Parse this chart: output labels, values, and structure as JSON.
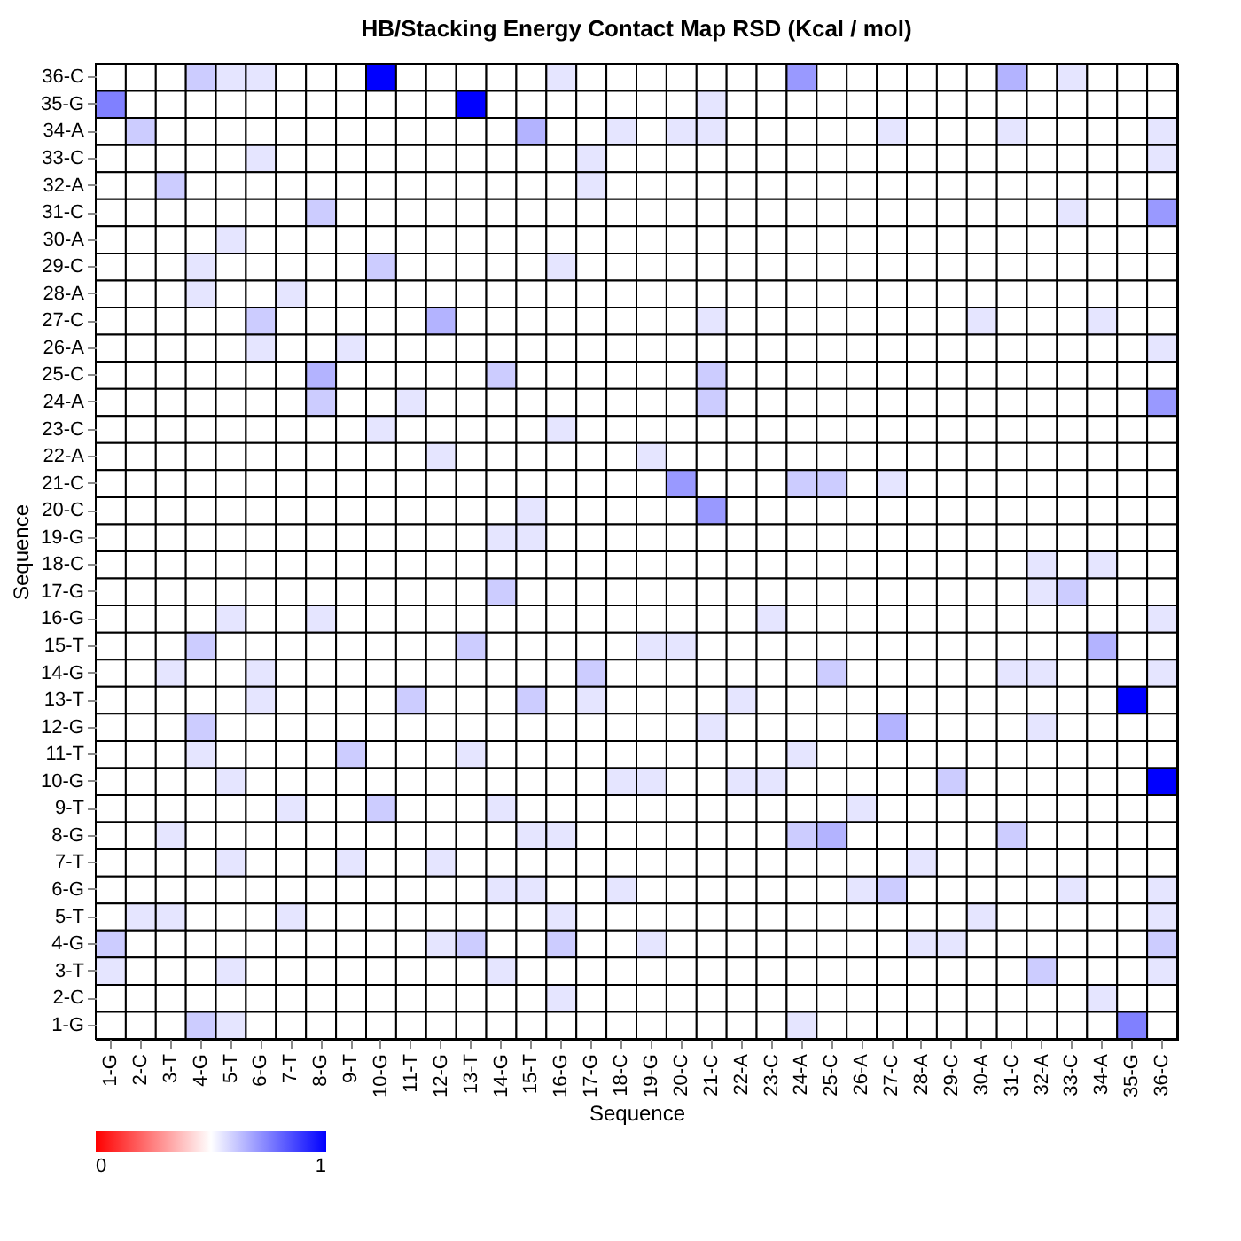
{
  "chart_data": {
    "type": "heatmap",
    "title": "HB/Stacking Energy Contact Map RSD (Kcal / mol)",
    "xlabel": "Sequence",
    "ylabel": "Sequence",
    "categories": [
      "1-G",
      "2-C",
      "3-T",
      "4-G",
      "5-T",
      "6-G",
      "7-T",
      "8-G",
      "9-T",
      "10-G",
      "11-T",
      "12-G",
      "13-T",
      "14-G",
      "15-T",
      "16-G",
      "17-G",
      "18-C",
      "19-G",
      "20-C",
      "21-C",
      "22-A",
      "23-C",
      "24-A",
      "25-C",
      "26-A",
      "27-C",
      "28-A",
      "29-C",
      "30-A",
      "31-C",
      "32-A",
      "33-C",
      "34-A",
      "35-G",
      "36-C"
    ],
    "y_categories": [
      "36-C",
      "35-G",
      "34-A",
      "33-C",
      "32-A",
      "31-C",
      "30-A",
      "29-C",
      "28-A",
      "27-C",
      "26-A",
      "25-C",
      "24-A",
      "23-C",
      "22-A",
      "21-C",
      "20-C",
      "19-G",
      "18-C",
      "17-G",
      "16-G",
      "15-T",
      "14-G",
      "13-T",
      "12-G",
      "11-T",
      "10-G",
      "9-T",
      "8-G",
      "7-T",
      "6-G",
      "5-T",
      "4-G",
      "3-T",
      "2-C",
      "1-G"
    ],
    "cells": [
      [
        0.5,
        0.5,
        0.5,
        0.6,
        0.55,
        0.55,
        0.5,
        0.5,
        0.5,
        1,
        0.5,
        0.5,
        0.5,
        0.5,
        0.5,
        0.55,
        0.5,
        0.5,
        0.5,
        0.5,
        0.5,
        0.5,
        0.5,
        0.7,
        0.5,
        0.5,
        0.5,
        0.5,
        0.5,
        0.5,
        0.65,
        0.5,
        0.55,
        0.5,
        0.5,
        0.5
      ],
      [
        0.75,
        0.5,
        0.5,
        0.5,
        0.5,
        0.5,
        0.5,
        0.5,
        0.5,
        0.5,
        0.5,
        0.5,
        1,
        0.5,
        0.5,
        0.5,
        0.5,
        0.5,
        0.5,
        0.5,
        0.55,
        0.5,
        0.5,
        0.5,
        0.5,
        0.5,
        0.5,
        0.5,
        0.5,
        0.5,
        0.5,
        0.5,
        0.5,
        0.5,
        0.5,
        0.5
      ],
      [
        0.5,
        0.6,
        0.5,
        0.5,
        0.5,
        0.5,
        0.5,
        0.5,
        0.5,
        0.5,
        0.5,
        0.5,
        0.5,
        0.5,
        0.65,
        0.5,
        0.5,
        0.55,
        0.5,
        0.55,
        0.55,
        0.5,
        0.5,
        0.5,
        0.5,
        0.5,
        0.55,
        0.5,
        0.5,
        0.5,
        0.55,
        0.5,
        0.5,
        0.5,
        0.5,
        0.55
      ],
      [
        0.5,
        0.5,
        0.5,
        0.5,
        0.5,
        0.55,
        0.5,
        0.5,
        0.5,
        0.5,
        0.5,
        0.5,
        0.5,
        0.5,
        0.5,
        0.5,
        0.55,
        0.5,
        0.5,
        0.5,
        0.5,
        0.5,
        0.5,
        0.5,
        0.5,
        0.5,
        0.5,
        0.5,
        0.5,
        0.5,
        0.5,
        0.5,
        0.5,
        0.5,
        0.5,
        0.55
      ],
      [
        0.5,
        0.5,
        0.6,
        0.5,
        0.5,
        0.5,
        0.5,
        0.5,
        0.5,
        0.5,
        0.5,
        0.5,
        0.5,
        0.5,
        0.5,
        0.5,
        0.55,
        0.5,
        0.5,
        0.5,
        0.5,
        0.5,
        0.5,
        0.5,
        0.5,
        0.5,
        0.5,
        0.5,
        0.5,
        0.5,
        0.5,
        0.5,
        0.5,
        0.5,
        0.5,
        0.5
      ],
      [
        0.5,
        0.5,
        0.5,
        0.5,
        0.5,
        0.5,
        0.5,
        0.6,
        0.5,
        0.5,
        0.5,
        0.5,
        0.5,
        0.5,
        0.5,
        0.5,
        0.5,
        0.5,
        0.5,
        0.5,
        0.5,
        0.5,
        0.5,
        0.5,
        0.5,
        0.5,
        0.5,
        0.5,
        0.5,
        0.5,
        0.5,
        0.5,
        0.55,
        0.5,
        0.5,
        0.7
      ],
      [
        0.5,
        0.5,
        0.5,
        0.5,
        0.55,
        0.5,
        0.5,
        0.5,
        0.5,
        0.5,
        0.5,
        0.5,
        0.5,
        0.5,
        0.5,
        0.5,
        0.5,
        0.5,
        0.5,
        0.5,
        0.5,
        0.5,
        0.5,
        0.5,
        0.5,
        0.5,
        0.5,
        0.5,
        0.5,
        0.5,
        0.5,
        0.5,
        0.5,
        0.5,
        0.5,
        0.5
      ],
      [
        0.5,
        0.5,
        0.5,
        0.55,
        0.5,
        0.5,
        0.5,
        0.5,
        0.5,
        0.6,
        0.5,
        0.5,
        0.5,
        0.5,
        0.5,
        0.55,
        0.5,
        0.5,
        0.5,
        0.5,
        0.5,
        0.5,
        0.5,
        0.5,
        0.5,
        0.5,
        0.5,
        0.5,
        0.5,
        0.5,
        0.5,
        0.5,
        0.5,
        0.5,
        0.5,
        0.5
      ],
      [
        0.5,
        0.5,
        0.5,
        0.55,
        0.5,
        0.5,
        0.55,
        0.5,
        0.5,
        0.5,
        0.5,
        0.5,
        0.5,
        0.5,
        0.5,
        0.5,
        0.5,
        0.5,
        0.5,
        0.5,
        0.5,
        0.5,
        0.5,
        0.5,
        0.5,
        0.5,
        0.5,
        0.5,
        0.5,
        0.5,
        0.5,
        0.5,
        0.5,
        0.5,
        0.5,
        0.5
      ],
      [
        0.5,
        0.5,
        0.5,
        0.5,
        0.5,
        0.6,
        0.5,
        0.5,
        0.5,
        0.5,
        0.5,
        0.65,
        0.5,
        0.5,
        0.5,
        0.5,
        0.5,
        0.5,
        0.5,
        0.5,
        0.55,
        0.5,
        0.5,
        0.5,
        0.5,
        0.5,
        0.5,
        0.5,
        0.5,
        0.55,
        0.5,
        0.5,
        0.5,
        0.55,
        0.5,
        0.5
      ],
      [
        0.5,
        0.5,
        0.5,
        0.5,
        0.5,
        0.55,
        0.5,
        0.5,
        0.55,
        0.5,
        0.5,
        0.5,
        0.5,
        0.5,
        0.5,
        0.5,
        0.5,
        0.5,
        0.5,
        0.5,
        0.5,
        0.5,
        0.5,
        0.5,
        0.5,
        0.5,
        0.5,
        0.5,
        0.5,
        0.5,
        0.5,
        0.5,
        0.5,
        0.5,
        0.5,
        0.55
      ],
      [
        0.5,
        0.5,
        0.5,
        0.5,
        0.5,
        0.5,
        0.5,
        0.65,
        0.5,
        0.5,
        0.5,
        0.5,
        0.5,
        0.6,
        0.5,
        0.5,
        0.5,
        0.5,
        0.5,
        0.5,
        0.6,
        0.5,
        0.5,
        0.5,
        0.5,
        0.5,
        0.5,
        0.5,
        0.5,
        0.5,
        0.5,
        0.5,
        0.5,
        0.5,
        0.5,
        0.5
      ],
      [
        0.5,
        0.5,
        0.5,
        0.5,
        0.5,
        0.5,
        0.5,
        0.6,
        0.5,
        0.5,
        0.55,
        0.5,
        0.5,
        0.5,
        0.5,
        0.5,
        0.5,
        0.5,
        0.5,
        0.5,
        0.6,
        0.5,
        0.5,
        0.5,
        0.5,
        0.5,
        0.5,
        0.5,
        0.5,
        0.5,
        0.5,
        0.5,
        0.5,
        0.5,
        0.5,
        0.7
      ],
      [
        0.5,
        0.5,
        0.5,
        0.5,
        0.5,
        0.5,
        0.5,
        0.5,
        0.5,
        0.55,
        0.5,
        0.5,
        0.5,
        0.5,
        0.5,
        0.55,
        0.5,
        0.5,
        0.5,
        0.5,
        0.5,
        0.5,
        0.5,
        0.5,
        0.5,
        0.5,
        0.5,
        0.5,
        0.5,
        0.5,
        0.5,
        0.5,
        0.5,
        0.5,
        0.5,
        0.5
      ],
      [
        0.5,
        0.5,
        0.5,
        0.5,
        0.5,
        0.5,
        0.5,
        0.5,
        0.5,
        0.5,
        0.5,
        0.55,
        0.5,
        0.5,
        0.5,
        0.5,
        0.5,
        0.5,
        0.55,
        0.5,
        0.5,
        0.5,
        0.5,
        0.5,
        0.5,
        0.5,
        0.5,
        0.5,
        0.5,
        0.5,
        0.5,
        0.5,
        0.5,
        0.5,
        0.5,
        0.5
      ],
      [
        0.5,
        0.5,
        0.5,
        0.5,
        0.5,
        0.5,
        0.5,
        0.5,
        0.5,
        0.5,
        0.5,
        0.5,
        0.5,
        0.5,
        0.5,
        0.5,
        0.5,
        0.5,
        0.5,
        0.7,
        0.5,
        0.5,
        0.5,
        0.6,
        0.6,
        0.5,
        0.55,
        0.5,
        0.5,
        0.5,
        0.5,
        0.5,
        0.5,
        0.5,
        0.5,
        0.5
      ],
      [
        0.5,
        0.5,
        0.5,
        0.5,
        0.5,
        0.5,
        0.5,
        0.5,
        0.5,
        0.5,
        0.5,
        0.5,
        0.5,
        0.5,
        0.55,
        0.5,
        0.5,
        0.5,
        0.5,
        0.5,
        0.7,
        0.5,
        0.5,
        0.5,
        0.5,
        0.5,
        0.5,
        0.5,
        0.5,
        0.5,
        0.5,
        0.5,
        0.5,
        0.5,
        0.5,
        0.5
      ],
      [
        0.5,
        0.5,
        0.5,
        0.5,
        0.5,
        0.5,
        0.5,
        0.5,
        0.5,
        0.5,
        0.5,
        0.5,
        0.5,
        0.55,
        0.55,
        0.5,
        0.5,
        0.5,
        0.5,
        0.5,
        0.5,
        0.5,
        0.5,
        0.5,
        0.5,
        0.5,
        0.5,
        0.5,
        0.5,
        0.5,
        0.5,
        0.5,
        0.5,
        0.5,
        0.5,
        0.5
      ],
      [
        0.5,
        0.5,
        0.5,
        0.5,
        0.5,
        0.5,
        0.5,
        0.5,
        0.5,
        0.5,
        0.5,
        0.5,
        0.5,
        0.5,
        0.5,
        0.5,
        0.5,
        0.5,
        0.5,
        0.5,
        0.5,
        0.5,
        0.5,
        0.5,
        0.5,
        0.5,
        0.5,
        0.5,
        0.5,
        0.5,
        0.5,
        0.55,
        0.5,
        0.55,
        0.5,
        0.5
      ],
      [
        0.5,
        0.5,
        0.5,
        0.5,
        0.5,
        0.5,
        0.5,
        0.5,
        0.5,
        0.5,
        0.5,
        0.5,
        0.5,
        0.6,
        0.5,
        0.5,
        0.5,
        0.5,
        0.5,
        0.5,
        0.5,
        0.5,
        0.5,
        0.5,
        0.5,
        0.5,
        0.5,
        0.5,
        0.5,
        0.5,
        0.5,
        0.55,
        0.6,
        0.5,
        0.5,
        0.5
      ],
      [
        0.5,
        0.5,
        0.5,
        0.5,
        0.55,
        0.5,
        0.5,
        0.55,
        0.5,
        0.5,
        0.5,
        0.5,
        0.5,
        0.5,
        0.5,
        0.5,
        0.5,
        0.5,
        0.5,
        0.5,
        0.5,
        0.5,
        0.55,
        0.5,
        0.5,
        0.5,
        0.5,
        0.5,
        0.5,
        0.5,
        0.5,
        0.5,
        0.5,
        0.5,
        0.5,
        0.55
      ],
      [
        0.5,
        0.5,
        0.5,
        0.6,
        0.5,
        0.5,
        0.5,
        0.5,
        0.5,
        0.5,
        0.5,
        0.5,
        0.6,
        0.5,
        0.5,
        0.5,
        0.5,
        0.5,
        0.55,
        0.55,
        0.5,
        0.5,
        0.5,
        0.5,
        0.5,
        0.5,
        0.5,
        0.5,
        0.5,
        0.5,
        0.5,
        0.5,
        0.5,
        0.65,
        0.5,
        0.5
      ],
      [
        0.5,
        0.5,
        0.55,
        0.5,
        0.5,
        0.55,
        0.5,
        0.5,
        0.5,
        0.5,
        0.5,
        0.5,
        0.5,
        0.5,
        0.5,
        0.5,
        0.6,
        0.5,
        0.5,
        0.5,
        0.5,
        0.5,
        0.5,
        0.5,
        0.6,
        0.5,
        0.5,
        0.5,
        0.5,
        0.5,
        0.55,
        0.55,
        0.5,
        0.5,
        0.5,
        0.55
      ],
      [
        0.5,
        0.5,
        0.5,
        0.5,
        0.5,
        0.55,
        0.5,
        0.5,
        0.5,
        0.5,
        0.6,
        0.5,
        0.5,
        0.5,
        0.6,
        0.5,
        0.55,
        0.5,
        0.5,
        0.5,
        0.5,
        0.55,
        0.5,
        0.5,
        0.5,
        0.5,
        0.5,
        0.5,
        0.5,
        0.5,
        0.5,
        0.5,
        0.5,
        0.5,
        1,
        0.5
      ],
      [
        0.5,
        0.5,
        0.5,
        0.6,
        0.5,
        0.5,
        0.5,
        0.5,
        0.5,
        0.5,
        0.5,
        0.5,
        0.5,
        0.5,
        0.5,
        0.5,
        0.5,
        0.5,
        0.5,
        0.5,
        0.55,
        0.5,
        0.5,
        0.5,
        0.5,
        0.5,
        0.65,
        0.5,
        0.5,
        0.5,
        0.5,
        0.55,
        0.5,
        0.5,
        0.5,
        0.5
      ],
      [
        0.5,
        0.5,
        0.5,
        0.55,
        0.5,
        0.5,
        0.5,
        0.5,
        0.6,
        0.5,
        0.5,
        0.5,
        0.55,
        0.5,
        0.5,
        0.5,
        0.5,
        0.5,
        0.5,
        0.5,
        0.5,
        0.5,
        0.5,
        0.55,
        0.5,
        0.5,
        0.5,
        0.5,
        0.5,
        0.5,
        0.5,
        0.5,
        0.5,
        0.5,
        0.5,
        0.5
      ],
      [
        0.5,
        0.5,
        0.5,
        0.5,
        0.55,
        0.5,
        0.5,
        0.5,
        0.5,
        0.5,
        0.5,
        0.5,
        0.5,
        0.5,
        0.5,
        0.5,
        0.5,
        0.55,
        0.55,
        0.5,
        0.5,
        0.55,
        0.55,
        0.5,
        0.5,
        0.5,
        0.5,
        0.5,
        0.6,
        0.5,
        0.5,
        0.5,
        0.5,
        0.5,
        0.5,
        1
      ],
      [
        0.5,
        0.5,
        0.5,
        0.5,
        0.5,
        0.5,
        0.55,
        0.5,
        0.5,
        0.6,
        0.5,
        0.5,
        0.5,
        0.55,
        0.5,
        0.5,
        0.5,
        0.5,
        0.5,
        0.5,
        0.5,
        0.5,
        0.5,
        0.5,
        0.5,
        0.55,
        0.5,
        0.5,
        0.5,
        0.5,
        0.5,
        0.5,
        0.5,
        0.5,
        0.5,
        0.5
      ],
      [
        0.5,
        0.5,
        0.55,
        0.5,
        0.5,
        0.5,
        0.5,
        0.5,
        0.5,
        0.5,
        0.5,
        0.5,
        0.5,
        0.5,
        0.55,
        0.55,
        0.5,
        0.5,
        0.5,
        0.5,
        0.5,
        0.5,
        0.5,
        0.6,
        0.65,
        0.5,
        0.5,
        0.5,
        0.5,
        0.5,
        0.6,
        0.5,
        0.5,
        0.5,
        0.5,
        0.5
      ],
      [
        0.5,
        0.5,
        0.5,
        0.5,
        0.55,
        0.5,
        0.5,
        0.5,
        0.55,
        0.5,
        0.5,
        0.55,
        0.5,
        0.5,
        0.5,
        0.5,
        0.5,
        0.5,
        0.5,
        0.5,
        0.5,
        0.5,
        0.5,
        0.5,
        0.5,
        0.5,
        0.5,
        0.55,
        0.5,
        0.5,
        0.5,
        0.5,
        0.5,
        0.5,
        0.5,
        0.5
      ],
      [
        0.5,
        0.5,
        0.5,
        0.5,
        0.5,
        0.5,
        0.5,
        0.5,
        0.5,
        0.5,
        0.5,
        0.5,
        0.5,
        0.55,
        0.55,
        0.5,
        0.5,
        0.55,
        0.5,
        0.5,
        0.5,
        0.5,
        0.5,
        0.5,
        0.5,
        0.55,
        0.6,
        0.5,
        0.5,
        0.5,
        0.5,
        0.5,
        0.55,
        0.5,
        0.5,
        0.55
      ],
      [
        0.5,
        0.55,
        0.55,
        0.5,
        0.5,
        0.5,
        0.55,
        0.5,
        0.5,
        0.5,
        0.5,
        0.5,
        0.5,
        0.5,
        0.5,
        0.55,
        0.5,
        0.5,
        0.5,
        0.5,
        0.5,
        0.5,
        0.5,
        0.5,
        0.5,
        0.5,
        0.5,
        0.5,
        0.5,
        0.55,
        0.5,
        0.5,
        0.5,
        0.5,
        0.5,
        0.55
      ],
      [
        0.6,
        0.5,
        0.5,
        0.5,
        0.5,
        0.5,
        0.5,
        0.5,
        0.5,
        0.5,
        0.5,
        0.55,
        0.6,
        0.5,
        0.5,
        0.6,
        0.5,
        0.5,
        0.55,
        0.5,
        0.5,
        0.5,
        0.5,
        0.5,
        0.5,
        0.5,
        0.5,
        0.55,
        0.55,
        0.5,
        0.5,
        0.5,
        0.5,
        0.5,
        0.5,
        0.6
      ],
      [
        0.55,
        0.5,
        0.5,
        0.5,
        0.55,
        0.5,
        0.5,
        0.5,
        0.5,
        0.5,
        0.5,
        0.5,
        0.5,
        0.55,
        0.5,
        0.5,
        0.5,
        0.5,
        0.5,
        0.5,
        0.5,
        0.5,
        0.5,
        0.5,
        0.5,
        0.5,
        0.5,
        0.5,
        0.5,
        0.5,
        0.5,
        0.6,
        0.5,
        0.5,
        0.5,
        0.55
      ],
      [
        0.5,
        0.5,
        0.5,
        0.5,
        0.5,
        0.5,
        0.5,
        0.5,
        0.5,
        0.5,
        0.5,
        0.5,
        0.5,
        0.5,
        0.5,
        0.55,
        0.5,
        0.5,
        0.5,
        0.5,
        0.5,
        0.5,
        0.5,
        0.5,
        0.5,
        0.5,
        0.5,
        0.5,
        0.5,
        0.5,
        0.5,
        0.5,
        0.5,
        0.55,
        0.5,
        0.5
      ],
      [
        0.5,
        0.5,
        0.5,
        0.6,
        0.55,
        0.5,
        0.5,
        0.5,
        0.5,
        0.5,
        0.5,
        0.5,
        0.5,
        0.5,
        0.5,
        0.5,
        0.5,
        0.5,
        0.5,
        0.5,
        0.5,
        0.5,
        0.5,
        0.55,
        0.5,
        0.5,
        0.5,
        0.5,
        0.5,
        0.5,
        0.5,
        0.5,
        0.5,
        0.5,
        0.75,
        0.5
      ]
    ],
    "clim": [
      0,
      1
    ],
    "cticks": [
      0,
      1
    ]
  }
}
